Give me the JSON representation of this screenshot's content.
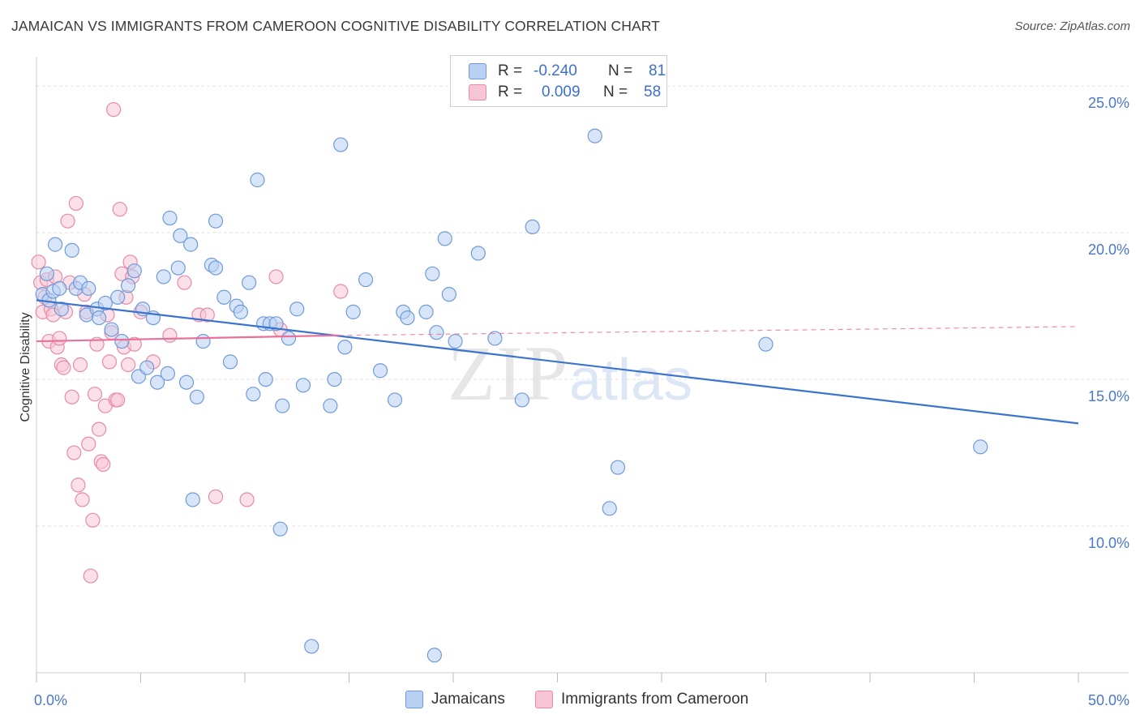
{
  "title": "JAMAICAN VS IMMIGRANTS FROM CAMEROON COGNITIVE DISABILITY CORRELATION CHART",
  "source": "Source: ZipAtlas.com",
  "watermark": {
    "zip": "ZIP",
    "atlas": "atlas"
  },
  "colors": {
    "blue_fill": "#b8d0f2",
    "blue_stroke": "#6f9ad9",
    "blue_line": "#3a74cc",
    "pink_fill": "#f7c6d6",
    "pink_stroke": "#e88aa8",
    "pink_line": "#e8709a",
    "grid": "#e3e3e3",
    "tick_text": "#4a78c8"
  },
  "legend": {
    "rows": [
      {
        "r_label": "R =",
        "r_value": "-0.240",
        "n_label": "N =",
        "n_value": "81"
      },
      {
        "r_label": "R =",
        "r_value": "0.009",
        "n_label": "N =",
        "n_value": "58"
      }
    ]
  },
  "bottom_legend": {
    "series1": "Jamaicans",
    "series2": "Immigrants from Cameroon"
  },
  "chart_data": {
    "type": "scatter",
    "title": "JAMAICAN VS IMMIGRANTS FROM CAMEROON COGNITIVE DISABILITY CORRELATION CHART",
    "xlabel": "",
    "ylabel": "Cognitive Disability",
    "xlim": [
      0,
      50
    ],
    "ylim": [
      5.0,
      26.0
    ],
    "x_tick_labels": [
      "0.0%",
      "50.0%"
    ],
    "y_ticks": [
      10,
      15,
      20,
      25
    ],
    "y_tick_labels": [
      "10.0%",
      "15.0%",
      "20.0%",
      "25.0%"
    ],
    "series": [
      {
        "name": "Jamaicans",
        "r": -0.24,
        "n": 81,
        "trend": {
          "x": [
            0,
            50
          ],
          "y": [
            17.7,
            13.5
          ],
          "style": "solid"
        },
        "points": [
          [
            0.3,
            17.9
          ],
          [
            0.5,
            18.6
          ],
          [
            0.6,
            17.7
          ],
          [
            0.8,
            18.0
          ],
          [
            0.9,
            19.6
          ],
          [
            1.1,
            18.1
          ],
          [
            1.2,
            17.4
          ],
          [
            1.7,
            19.4
          ],
          [
            1.9,
            18.1
          ],
          [
            2.1,
            18.3
          ],
          [
            2.4,
            17.2
          ],
          [
            2.5,
            18.1
          ],
          [
            2.9,
            17.4
          ],
          [
            3.0,
            17.1
          ],
          [
            3.3,
            17.6
          ],
          [
            3.6,
            16.7
          ],
          [
            3.9,
            17.8
          ],
          [
            4.1,
            16.3
          ],
          [
            4.4,
            18.2
          ],
          [
            4.7,
            18.7
          ],
          [
            4.9,
            15.1
          ],
          [
            5.1,
            17.4
          ],
          [
            5.3,
            15.4
          ],
          [
            5.6,
            17.1
          ],
          [
            5.8,
            14.9
          ],
          [
            6.1,
            18.5
          ],
          [
            6.3,
            15.2
          ],
          [
            6.4,
            20.5
          ],
          [
            6.8,
            18.8
          ],
          [
            6.9,
            19.9
          ],
          [
            7.2,
            14.9
          ],
          [
            7.4,
            19.6
          ],
          [
            7.7,
            14.4
          ],
          [
            8.0,
            16.3
          ],
          [
            8.4,
            18.9
          ],
          [
            8.6,
            18.8
          ],
          [
            8.6,
            20.4
          ],
          [
            9.0,
            17.8
          ],
          [
            9.3,
            15.6
          ],
          [
            9.6,
            17.5
          ],
          [
            9.8,
            17.3
          ],
          [
            10.2,
            18.3
          ],
          [
            10.4,
            14.5
          ],
          [
            10.6,
            21.8
          ],
          [
            10.9,
            16.9
          ],
          [
            11.0,
            15.0
          ],
          [
            11.2,
            16.9
          ],
          [
            11.5,
            16.9
          ],
          [
            11.8,
            14.1
          ],
          [
            12.1,
            16.4
          ],
          [
            12.5,
            17.4
          ],
          [
            12.8,
            14.8
          ],
          [
            13.2,
            5.9
          ],
          [
            14.1,
            14.1
          ],
          [
            14.3,
            15.0
          ],
          [
            14.6,
            23.0
          ],
          [
            14.8,
            16.1
          ],
          [
            15.8,
            18.4
          ],
          [
            16.5,
            15.3
          ],
          [
            17.2,
            14.3
          ],
          [
            17.6,
            17.3
          ],
          [
            17.8,
            17.1
          ],
          [
            18.7,
            17.3
          ],
          [
            19.0,
            18.6
          ],
          [
            19.2,
            16.6
          ],
          [
            19.6,
            19.8
          ],
          [
            19.8,
            17.9
          ],
          [
            20.1,
            16.3
          ],
          [
            21.2,
            19.3
          ],
          [
            22.0,
            16.4
          ],
          [
            23.3,
            14.3
          ],
          [
            23.8,
            20.2
          ],
          [
            26.8,
            23.3
          ],
          [
            27.5,
            10.6
          ],
          [
            27.9,
            12.0
          ],
          [
            35.0,
            16.2
          ],
          [
            45.3,
            12.7
          ],
          [
            7.5,
            10.9
          ],
          [
            11.7,
            9.9
          ],
          [
            19.1,
            5.6
          ],
          [
            15.2,
            17.3
          ]
        ]
      },
      {
        "name": "Immigrants from Cameroon",
        "r": 0.009,
        "n": 58,
        "trend": {
          "x": [
            0,
            14.5
          ],
          "y": [
            16.3,
            16.5
          ],
          "style": "solid",
          "dashed_x": [
            14.5,
            50
          ],
          "dashed_y": [
            16.5,
            16.8
          ]
        },
        "points": [
          [
            0.1,
            19.0
          ],
          [
            0.2,
            18.3
          ],
          [
            0.3,
            17.3
          ],
          [
            0.4,
            17.8
          ],
          [
            0.5,
            18.4
          ],
          [
            0.6,
            16.3
          ],
          [
            0.7,
            17.4
          ],
          [
            0.8,
            17.2
          ],
          [
            0.9,
            18.5
          ],
          [
            1.0,
            16.1
          ],
          [
            1.1,
            16.4
          ],
          [
            1.2,
            15.5
          ],
          [
            1.3,
            15.4
          ],
          [
            1.4,
            17.3
          ],
          [
            1.5,
            20.4
          ],
          [
            1.6,
            18.3
          ],
          [
            1.7,
            14.4
          ],
          [
            1.8,
            12.5
          ],
          [
            1.9,
            21.0
          ],
          [
            2.0,
            11.4
          ],
          [
            2.1,
            15.5
          ],
          [
            2.2,
            10.9
          ],
          [
            2.3,
            17.9
          ],
          [
            2.4,
            17.3
          ],
          [
            2.5,
            12.8
          ],
          [
            2.6,
            8.3
          ],
          [
            2.7,
            10.2
          ],
          [
            2.8,
            14.5
          ],
          [
            2.9,
            16.2
          ],
          [
            3.0,
            13.3
          ],
          [
            3.1,
            12.2
          ],
          [
            3.2,
            12.1
          ],
          [
            3.3,
            14.1
          ],
          [
            3.4,
            17.2
          ],
          [
            3.5,
            15.6
          ],
          [
            3.6,
            16.6
          ],
          [
            3.7,
            24.2
          ],
          [
            3.8,
            14.3
          ],
          [
            3.9,
            14.3
          ],
          [
            4.0,
            20.8
          ],
          [
            4.1,
            18.6
          ],
          [
            4.2,
            16.1
          ],
          [
            4.3,
            17.8
          ],
          [
            4.4,
            15.5
          ],
          [
            4.5,
            19.0
          ],
          [
            4.6,
            18.5
          ],
          [
            4.7,
            16.2
          ],
          [
            5.0,
            17.3
          ],
          [
            5.6,
            15.6
          ],
          [
            6.4,
            16.5
          ],
          [
            7.1,
            18.3
          ],
          [
            7.8,
            17.2
          ],
          [
            8.2,
            17.2
          ],
          [
            8.6,
            11.0
          ],
          [
            10.1,
            10.9
          ],
          [
            11.5,
            18.5
          ],
          [
            11.7,
            16.7
          ],
          [
            14.6,
            18.0
          ]
        ]
      }
    ]
  }
}
